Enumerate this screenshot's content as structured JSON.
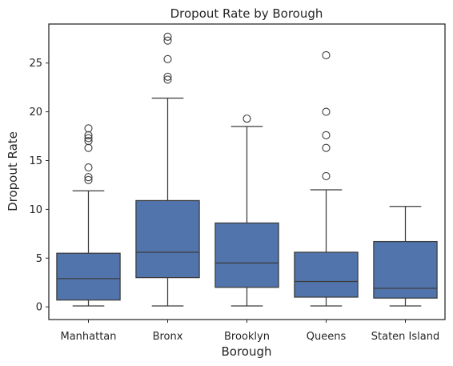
{
  "chart_data": {
    "type": "boxplot",
    "title": "Dropout Rate by Borough",
    "xlabel": "Borough",
    "ylabel": "Dropout Rate",
    "ylim": [
      -1.3,
      29.0
    ],
    "yticks": [
      0,
      5,
      10,
      15,
      20,
      25
    ],
    "grid": false,
    "legend": "none",
    "box_color": "#5074ab",
    "line_color": "#3c3c3c",
    "categories": [
      "Manhattan",
      "Bronx",
      "Brooklyn",
      "Queens",
      "Staten Island"
    ],
    "boxes": [
      {
        "category": "Manhattan",
        "whisker_low": 0.1,
        "q1": 0.7,
        "median": 2.9,
        "q3": 5.5,
        "whisker_high": 11.9,
        "outliers": [
          13.0,
          13.3,
          14.3,
          16.3,
          17.0,
          17.3,
          17.6,
          18.3
        ]
      },
      {
        "category": "Bronx",
        "whisker_low": 0.1,
        "q1": 3.0,
        "median": 5.6,
        "q3": 10.9,
        "whisker_high": 21.4,
        "outliers": [
          23.3,
          23.6,
          25.4,
          27.3,
          27.7
        ]
      },
      {
        "category": "Brooklyn",
        "whisker_low": 0.1,
        "q1": 2.0,
        "median": 4.5,
        "q3": 8.6,
        "whisker_high": 18.5,
        "outliers": [
          19.3
        ]
      },
      {
        "category": "Queens",
        "whisker_low": 0.1,
        "q1": 1.0,
        "median": 2.6,
        "q3": 5.6,
        "whisker_high": 12.0,
        "outliers": [
          13.4,
          16.3,
          17.6,
          20.0,
          25.8
        ]
      },
      {
        "category": "Staten Island",
        "whisker_low": 0.1,
        "q1": 0.9,
        "median": 1.9,
        "q3": 6.7,
        "whisker_high": 10.3,
        "outliers": []
      }
    ]
  }
}
